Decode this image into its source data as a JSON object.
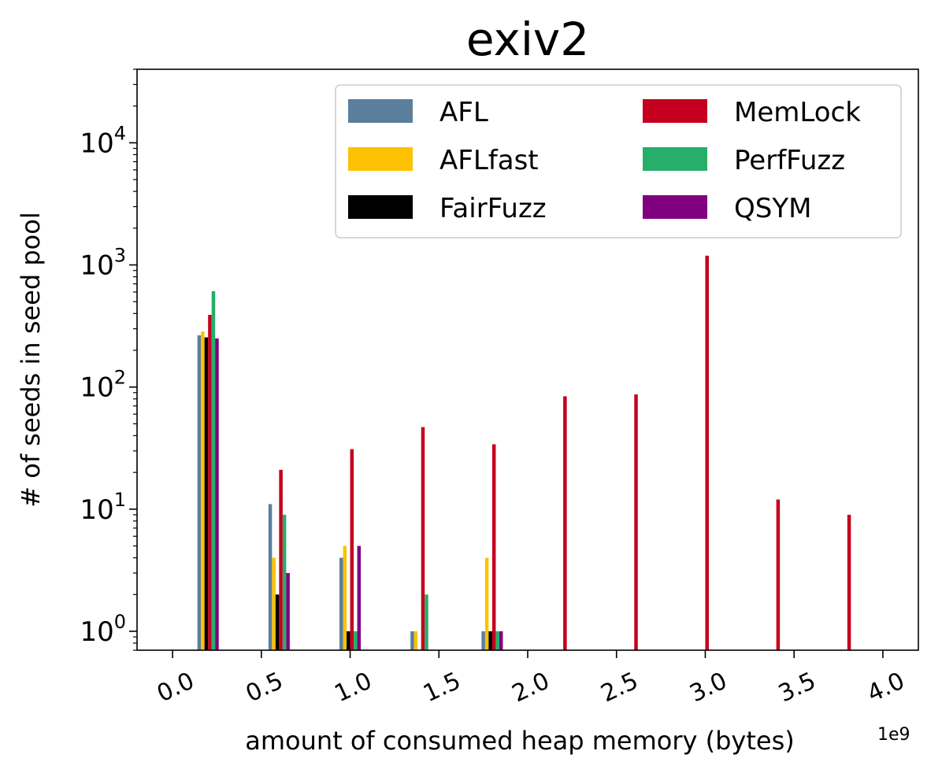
{
  "chart_data": {
    "type": "bar",
    "title": "exiv2",
    "xlabel": "amount of consumed heap memory (bytes)",
    "x_offset_label": "1e9",
    "ylabel": "# of seeds in seed pool",
    "yscale": "log",
    "xlim": [
      -0.2,
      4.2
    ],
    "ylim": [
      0.7,
      40000
    ],
    "xticks": [
      {
        "value": 0.0,
        "label": "0.0"
      },
      {
        "value": 0.5,
        "label": "0.5"
      },
      {
        "value": 1.0,
        "label": "1.0"
      },
      {
        "value": 1.5,
        "label": "1.5"
      },
      {
        "value": 2.0,
        "label": "2.0"
      },
      {
        "value": 2.5,
        "label": "2.5"
      },
      {
        "value": 3.0,
        "label": "3.0"
      },
      {
        "value": 3.5,
        "label": "3.5"
      },
      {
        "value": 4.0,
        "label": "4.0"
      }
    ],
    "yticks": [
      {
        "value": 1,
        "base": "10",
        "exp": "0"
      },
      {
        "value": 10,
        "base": "10",
        "exp": "1"
      },
      {
        "value": 100,
        "base": "10",
        "exp": "2"
      },
      {
        "value": 1000,
        "base": "10",
        "exp": "3"
      },
      {
        "value": 10000,
        "base": "10",
        "exp": "4"
      }
    ],
    "bin_centers": [
      0.2,
      0.6,
      1.0,
      1.4,
      1.8,
      2.2,
      2.6,
      3.0,
      3.4,
      3.8
    ],
    "legend_position": "top-right",
    "legend_columns": 2,
    "series": [
      {
        "name": "AFL",
        "color": "#5b7e9d",
        "values": [
          265,
          11,
          4,
          1,
          1,
          null,
          null,
          null,
          null,
          null
        ]
      },
      {
        "name": "AFLfast",
        "color": "#fdc103",
        "values": [
          285,
          4,
          5,
          1,
          4,
          null,
          null,
          null,
          null,
          null
        ]
      },
      {
        "name": "FairFuzz",
        "color": "#000000",
        "values": [
          255,
          2,
          1,
          null,
          1,
          null,
          null,
          null,
          null,
          null
        ]
      },
      {
        "name": "MemLock",
        "color": "#c4001e",
        "values": [
          390,
          21,
          31,
          47,
          34,
          84,
          87,
          1190,
          12,
          9
        ]
      },
      {
        "name": "PerfFuzz",
        "color": "#27ae6a",
        "values": [
          610,
          9,
          1,
          2,
          1,
          null,
          null,
          null,
          null,
          null
        ]
      },
      {
        "name": "QSYM",
        "color": "#800080",
        "values": [
          250,
          3,
          5,
          null,
          1,
          null,
          null,
          null,
          null,
          null
        ]
      }
    ]
  }
}
